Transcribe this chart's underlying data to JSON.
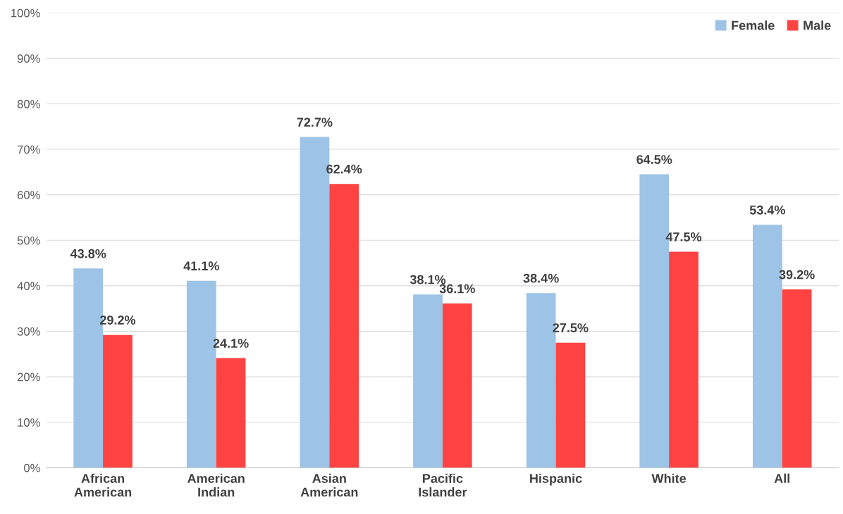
{
  "chart_data": {
    "type": "bar",
    "categories": [
      "African American",
      "American Indian",
      "Asian American",
      "Pacific Islander",
      "Hispanic",
      "White",
      "All"
    ],
    "series": [
      {
        "name": "Female",
        "color": "#9dc3e6",
        "values": [
          43.8,
          41.1,
          72.7,
          38.1,
          38.4,
          64.5,
          53.4
        ],
        "value_labels": [
          "43.8%",
          "41.1%",
          "72.7%",
          "38.1%",
          "38.4%",
          "64.5%",
          "53.4%"
        ]
      },
      {
        "name": "Male",
        "color": "#ff4343",
        "values": [
          29.2,
          24.1,
          62.4,
          36.1,
          27.5,
          47.5,
          39.2
        ],
        "value_labels": [
          "29.2%",
          "24.1%",
          "62.4%",
          "36.1%",
          "27.5%",
          "47.5%",
          "39.2%"
        ]
      }
    ],
    "ylim": [
      0,
      100
    ],
    "yticks": [
      {
        "value": 0,
        "label": "0%"
      },
      {
        "value": 10,
        "label": "10%"
      },
      {
        "value": 20,
        "label": "20%"
      },
      {
        "value": 30,
        "label": "30%"
      },
      {
        "value": 40,
        "label": "40%"
      },
      {
        "value": 50,
        "label": "50%"
      },
      {
        "value": 60,
        "label": "60%"
      },
      {
        "value": 70,
        "label": "70%"
      },
      {
        "value": 80,
        "label": "80%"
      },
      {
        "value": 90,
        "label": "90%"
      },
      {
        "value": 100,
        "label": "100%"
      }
    ],
    "grid": "y",
    "legend": "top right"
  }
}
